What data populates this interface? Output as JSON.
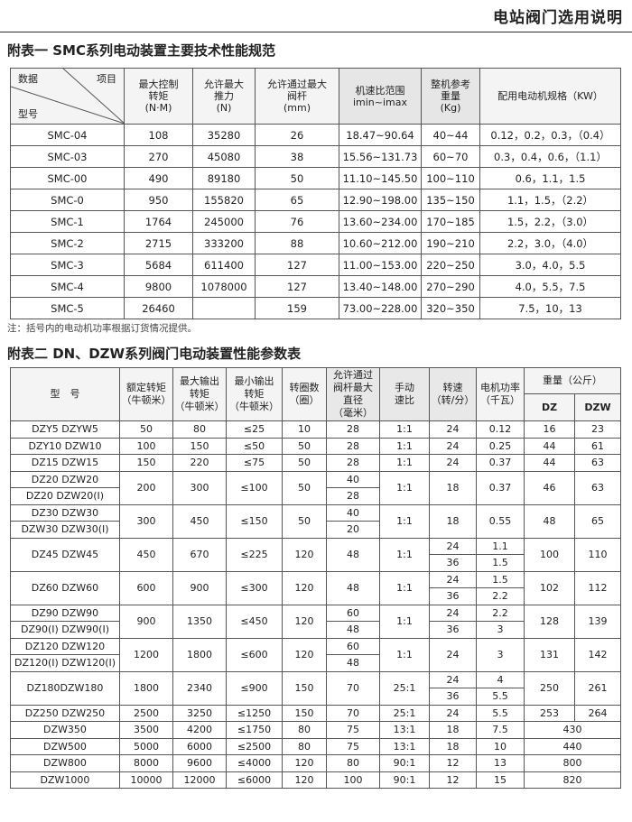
{
  "page_title": "电站阀门选用说明",
  "table1": {
    "title": "附表一  SMC系列电动装置主要技术性能规范",
    "corner": {
      "data": "数据",
      "item": "项目",
      "model": "型号"
    },
    "headers": [
      "最大控制\n转矩\n(N·M)",
      "允许最大\n推力\n(N)",
      "允许通过最大\n阀杆\n(mm)",
      "机速比范围\nimin~imax",
      "整机参考\n重量\n(Kg)",
      "配用电动机规格（KW）"
    ],
    "rows": [
      [
        "SMC-04",
        "108",
        "35280",
        "26",
        "18.47~90.64",
        "40~44",
        "0.12，0.2，0.3，（0.4）"
      ],
      [
        "SMC-03",
        "270",
        "45080",
        "38",
        "15.56~131.73",
        "60~70",
        "0.3，0.4，0.6，（1.1）"
      ],
      [
        "SMC-00",
        "490",
        "89180",
        "50",
        "11.10~145.50",
        "100~110",
        "0.6，1.1，1.5"
      ],
      [
        "SMC-0",
        "950",
        "155820",
        "65",
        "12.90~198.00",
        "135~150",
        "1.1，1.5，（2.2）"
      ],
      [
        "SMC-1",
        "1764",
        "245000",
        "76",
        "13.60~234.00",
        "170~185",
        "1.5，2.2，（3.0）"
      ],
      [
        "SMC-2",
        "2715",
        "333200",
        "88",
        "10.60~212.00",
        "190~210",
        "2.2，3.0，（4.0）"
      ],
      [
        "SMC-3",
        "5684",
        "611400",
        "127",
        "11.00~153.00",
        "220~250",
        "3.0，4.0，5.5"
      ],
      [
        "SMC-4",
        "9800",
        "1078000",
        "127",
        "13.40~148.00",
        "270~290",
        "4.0，5.5，7.5"
      ],
      [
        "SMC-5",
        "26460",
        "",
        "159",
        "73.00~228.00",
        "320~350",
        "7.5，10，13"
      ]
    ],
    "note": "注：括号内的电动机功率根据订货情况提供。"
  },
  "table2": {
    "title": "附表二 DN、DZW系列阀门电动装置性能参数表",
    "headers": {
      "model": "型　号",
      "rated": "额定转矩\n（牛顿米）",
      "max": "最大输出\n转矩\n（牛顿米）",
      "min": "最小输出\n转矩\n（牛顿米）",
      "turns": "转圈数\n（圈）",
      "dia": "允许通过\n阀杆最大\n直径\n（毫米）",
      "ratio": "手动\n速比",
      "speed": "转速\n（转/分）",
      "power": "电机功率\n（千瓦）",
      "weight": "重量（公斤）",
      "dz": "DZ",
      "dzw": "DZW"
    },
    "rows": [
      {
        "model": [
          "DZY5 DZYW5"
        ],
        "rated": "50",
        "max": "80",
        "min": "≤25",
        "turns": "10",
        "dia": [
          "28"
        ],
        "ratio": "1:1",
        "speed": [
          "24"
        ],
        "power": [
          "0.12"
        ],
        "dz": "16",
        "dzw": "23"
      },
      {
        "model": [
          "DZY10 DZW10"
        ],
        "rated": "100",
        "max": "150",
        "min": "≤50",
        "turns": "50",
        "dia": [
          "28"
        ],
        "ratio": "1:1",
        "speed": [
          "24"
        ],
        "power": [
          "0.25"
        ],
        "dz": "44",
        "dzw": "61"
      },
      {
        "model": [
          "DZ15 DZW15"
        ],
        "rated": "150",
        "max": "220",
        "min": "≤75",
        "turns": "50",
        "dia": [
          "28"
        ],
        "ratio": "1:1",
        "speed": [
          "24"
        ],
        "power": [
          "0.37"
        ],
        "dz": "44",
        "dzw": "63"
      },
      {
        "model": [
          "DZ20 DZW20",
          "DZ20 DZW20(Ⅰ)"
        ],
        "rated": "200",
        "max": "300",
        "min": "≤100",
        "turns": "50",
        "dia": [
          "40",
          "28"
        ],
        "ratio": "1:1",
        "speed": [
          "18"
        ],
        "power": [
          "0.37"
        ],
        "dz": "46",
        "dzw": "63"
      },
      {
        "model": [
          "DZ30 DZW30",
          "DZW30 DZW30(Ⅰ)"
        ],
        "rated": "300",
        "max": "450",
        "min": "≤150",
        "turns": "50",
        "dia": [
          "40",
          "20"
        ],
        "ratio": "1:1",
        "speed": [
          "18"
        ],
        "power": [
          "0.55"
        ],
        "dz": "48",
        "dzw": "65"
      },
      {
        "model": [
          "DZ45 DZW45"
        ],
        "rated": "450",
        "max": "670",
        "min": "≤225",
        "turns": "120",
        "dia": [
          "48"
        ],
        "ratio": "1:1",
        "speed": [
          "24",
          "36"
        ],
        "power": [
          "1.1",
          "1.5"
        ],
        "dz": "100",
        "dzw": "110"
      },
      {
        "model": [
          "DZ60 DZW60"
        ],
        "rated": "600",
        "max": "900",
        "min": "≤300",
        "turns": "120",
        "dia": [
          "48"
        ],
        "ratio": "1:1",
        "speed": [
          "24",
          "36"
        ],
        "power": [
          "1.5",
          "2.2"
        ],
        "dz": "102",
        "dzw": "112"
      },
      {
        "model": [
          "DZ90 DZW90",
          "DZ90(Ⅰ) DZW90(Ⅰ)"
        ],
        "rated": "900",
        "max": "1350",
        "min": "≤450",
        "turns": "120",
        "dia": [
          "60",
          "48"
        ],
        "ratio": "1:1",
        "speed": [
          "24",
          "36"
        ],
        "power": [
          "2.2",
          "3"
        ],
        "dz": "128",
        "dzw": "139"
      },
      {
        "model": [
          "DZ120 DZW120",
          "DZ120(Ⅰ) DZW120(Ⅰ)"
        ],
        "rated": "1200",
        "max": "1800",
        "min": "≤600",
        "turns": "120",
        "dia": [
          "60",
          "48"
        ],
        "ratio": "1:1",
        "speed": [
          "24"
        ],
        "power": [
          "3"
        ],
        "dz": "131",
        "dzw": "142"
      },
      {
        "model": [
          "DZ180DZW180"
        ],
        "rated": "1800",
        "max": "2340",
        "min": "≤900",
        "turns": "150",
        "dia": [
          "70"
        ],
        "ratio": "25:1",
        "speed": [
          "24",
          "36"
        ],
        "power": [
          "4",
          "5.5"
        ],
        "dz": "250",
        "dzw": "261"
      },
      {
        "model": [
          "DZ250 DZW250"
        ],
        "rated": "2500",
        "max": "3250",
        "min": "≤1250",
        "turns": "150",
        "dia": [
          "70"
        ],
        "ratio": "25:1",
        "speed": [
          "24"
        ],
        "power": [
          "5.5"
        ],
        "dz": "253",
        "dzw": "264"
      },
      {
        "model": [
          "DZW350"
        ],
        "rated": "3500",
        "max": "4200",
        "min": "≤1750",
        "turns": "80",
        "dia": [
          "75"
        ],
        "ratio": "13:1",
        "speed": [
          "18"
        ],
        "power": [
          "7.5"
        ],
        "weight": "430"
      },
      {
        "model": [
          "DZW500"
        ],
        "rated": "5000",
        "max": "6000",
        "min": "≤2500",
        "turns": "80",
        "dia": [
          "75"
        ],
        "ratio": "13:1",
        "speed": [
          "18"
        ],
        "power": [
          "10"
        ],
        "weight": "440"
      },
      {
        "model": [
          "DZW800"
        ],
        "rated": "8000",
        "max": "9600",
        "min": "≤4000",
        "turns": "120",
        "dia": [
          "80"
        ],
        "ratio": "90:1",
        "speed": [
          "12"
        ],
        "power": [
          "13"
        ],
        "weight": "800"
      },
      {
        "model": [
          "DZW1000"
        ],
        "rated": "10000",
        "max": "12000",
        "min": "≤6000",
        "turns": "120",
        "dia": [
          "100"
        ],
        "ratio": "90:1",
        "speed": [
          "12"
        ],
        "power": [
          "15"
        ],
        "weight": "820"
      }
    ]
  }
}
